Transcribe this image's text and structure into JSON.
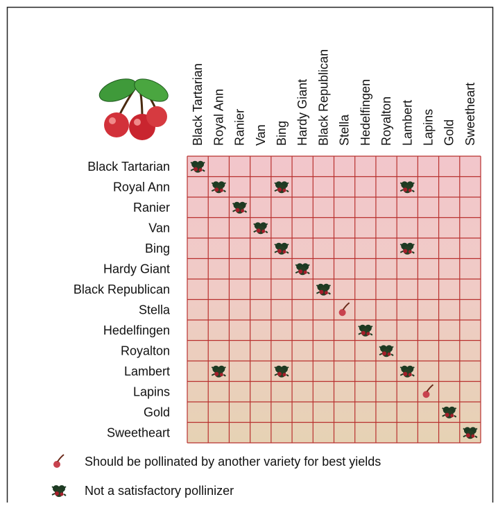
{
  "table": {
    "columns": [
      "Black Tartarian",
      "Royal Ann",
      "Ranier",
      "Van",
      "Bing",
      "Hardy Giant",
      "Black Republican",
      "Stella",
      "Hedelfingen",
      "Royalton",
      "Lambert",
      "Lapins",
      "Gold",
      "Sweetheart"
    ],
    "rows": [
      {
        "label": "Black Tartarian",
        "cells": [
          [
            0,
            1
          ]
        ]
      },
      {
        "label": "Royal Ann",
        "cells": [
          [
            1,
            1
          ],
          [
            4,
            1
          ],
          [
            10,
            1
          ]
        ]
      },
      {
        "label": "Ranier",
        "cells": [
          [
            2,
            1
          ]
        ]
      },
      {
        "label": "Van",
        "cells": [
          [
            3,
            1
          ]
        ]
      },
      {
        "label": "Bing",
        "cells": [
          [
            4,
            1
          ],
          [
            10,
            1
          ]
        ]
      },
      {
        "label": "Hardy Giant",
        "cells": [
          [
            5,
            1
          ]
        ]
      },
      {
        "label": "Black Republican",
        "cells": [
          [
            6,
            1
          ]
        ]
      },
      {
        "label": "Stella",
        "cells": [
          [
            7,
            0
          ]
        ]
      },
      {
        "label": "Hedelfingen",
        "cells": [
          [
            8,
            1
          ]
        ]
      },
      {
        "label": "Royalton",
        "cells": [
          [
            9,
            1
          ]
        ]
      },
      {
        "label": "Lambert",
        "cells": [
          [
            1,
            1
          ],
          [
            4,
            1
          ],
          [
            10,
            1
          ]
        ]
      },
      {
        "label": "Lapins",
        "cells": [
          [
            11,
            0
          ]
        ]
      },
      {
        "label": "Gold",
        "cells": [
          [
            12,
            1
          ]
        ]
      },
      {
        "label": "Sweetheart",
        "cells": [
          [
            13,
            1
          ]
        ]
      }
    ]
  },
  "legend": [
    "Should be pollinated by another variety for best yields",
    "Not a satisfactory pollinizer"
  ]
}
